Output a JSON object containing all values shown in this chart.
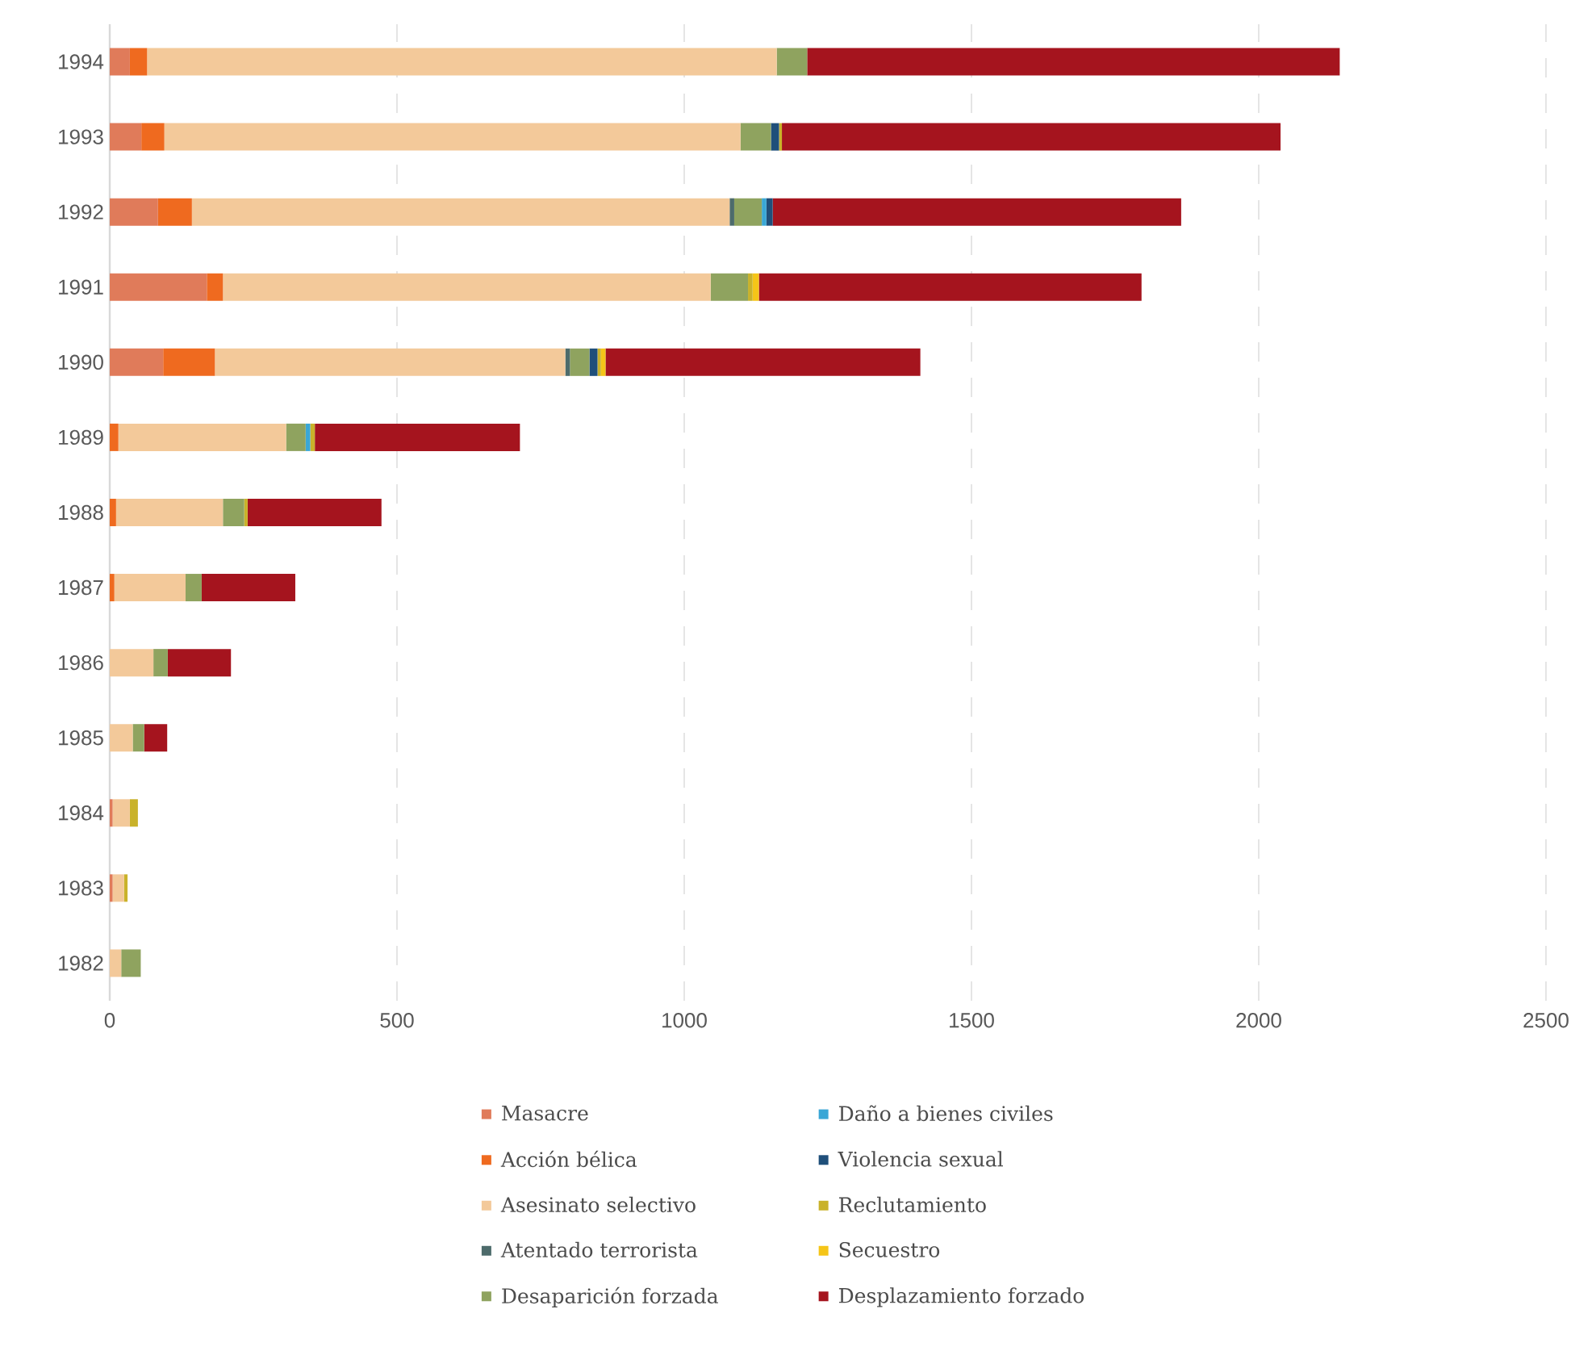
{
  "chart_data": {
    "type": "bar",
    "orientation": "horizontal",
    "stacked": true,
    "categories": [
      "1994",
      "1993",
      "1992",
      "1991",
      "1990",
      "1989",
      "1988",
      "1987",
      "1986",
      "1985",
      "1984",
      "1983",
      "1982"
    ],
    "series": [
      {
        "name": "Masacre",
        "color": "#e07b5a",
        "values": [
          35,
          55,
          84,
          169,
          93,
          0,
          0,
          0,
          0,
          0,
          5,
          5,
          0
        ]
      },
      {
        "name": "Acción bélica",
        "color": "#ef6a1f",
        "values": [
          30,
          40,
          59,
          28,
          90,
          15,
          11,
          8,
          0,
          0,
          0,
          0,
          0
        ]
      },
      {
        "name": "Asesinato selectivo",
        "color": "#f3c99a",
        "values": [
          1096,
          1003,
          936,
          849,
          610,
          292,
          186,
          124,
          76,
          40,
          30,
          20,
          20
        ]
      },
      {
        "name": "Atentado terrorista",
        "color": "#4d6b6b",
        "values": [
          0,
          0,
          8,
          0,
          8,
          0,
          0,
          0,
          0,
          0,
          0,
          0,
          0
        ]
      },
      {
        "name": "Desaparición forzada",
        "color": "#8fa35f",
        "values": [
          53,
          53,
          48,
          65,
          34,
          34,
          37,
          28,
          25,
          20,
          0,
          0,
          34
        ]
      },
      {
        "name": "Daño a bienes civiles",
        "color": "#3aa7d6",
        "values": [
          0,
          0,
          8,
          0,
          0,
          8,
          0,
          0,
          0,
          0,
          0,
          0,
          0
        ]
      },
      {
        "name": "Violencia sexual",
        "color": "#1f4f7a",
        "values": [
          0,
          14,
          11,
          0,
          14,
          0,
          0,
          0,
          0,
          0,
          0,
          0,
          0
        ]
      },
      {
        "name": "Reclutamiento",
        "color": "#c9b22a",
        "values": [
          0,
          5,
          0,
          8,
          6,
          8,
          6,
          0,
          0,
          0,
          14,
          6,
          0
        ]
      },
      {
        "name": "Secuestro",
        "color": "#f5c518",
        "values": [
          0,
          0,
          0,
          11,
          8,
          0,
          0,
          0,
          0,
          0,
          0,
          0,
          0
        ]
      },
      {
        "name": "Desplazamiento forzado",
        "color": "#a5141e",
        "values": [
          927,
          868,
          711,
          666,
          548,
          357,
          233,
          163,
          110,
          40,
          0,
          0,
          0
        ]
      }
    ],
    "xlim": [
      0,
      2500
    ],
    "xticks": [
      0,
      500,
      1000,
      1500,
      2000,
      2500
    ],
    "grid": "x",
    "legend": "bottom"
  }
}
